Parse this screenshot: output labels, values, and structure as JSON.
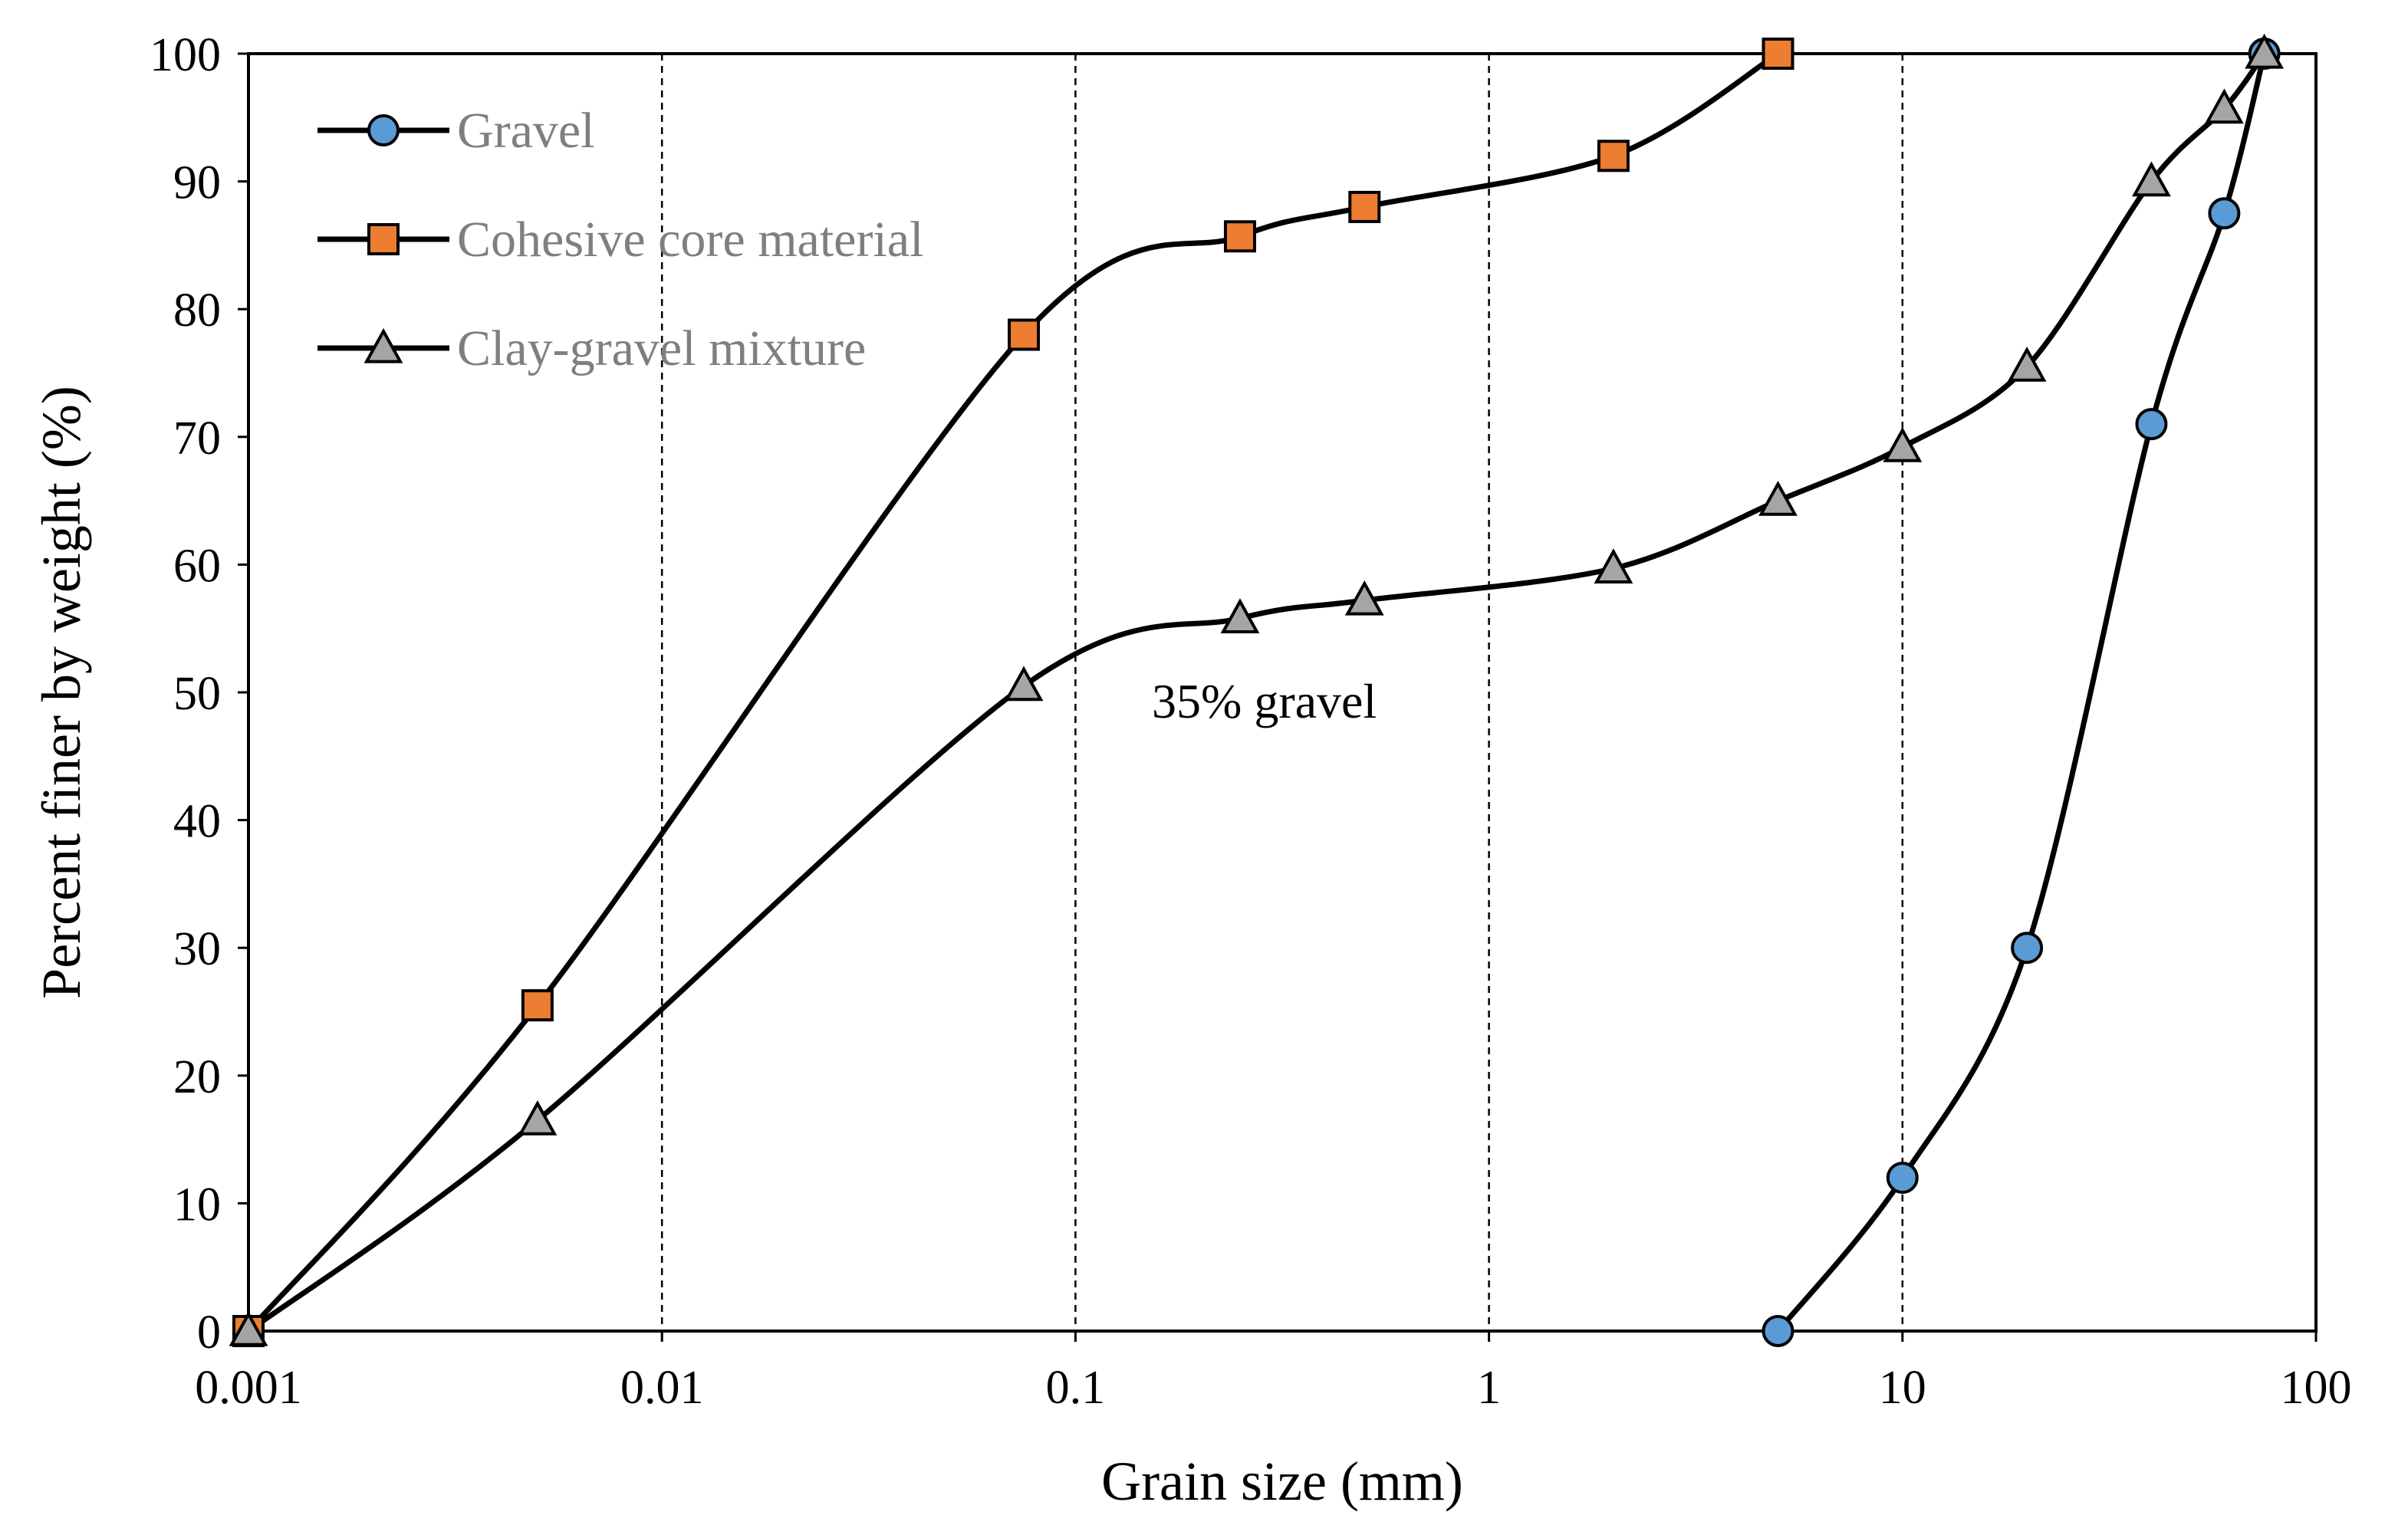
{
  "chart_data": {
    "type": "line",
    "title": "",
    "xlabel": "Grain size (mm)",
    "ylabel": "Percent finer by weight (%)",
    "xscale": "log",
    "xlim": [
      0.001,
      100
    ],
    "ylim": [
      0,
      100
    ],
    "x_ticks": [
      "0.001",
      "0.01",
      "0.1",
      "1",
      "10",
      "100"
    ],
    "y_ticks": [
      "0",
      "10",
      "20",
      "30",
      "40",
      "50",
      "60",
      "70",
      "80",
      "90",
      "100"
    ],
    "grid": "vertical dashed at decades",
    "legend_position": "top-left",
    "annotation": "35% gravel",
    "series": [
      {
        "name": "Gravel",
        "marker": "circle",
        "color": "#5b9bd5",
        "points": [
          [
            5,
            0
          ],
          [
            10,
            12
          ],
          [
            20,
            30
          ],
          [
            40,
            71
          ],
          [
            60,
            87.5
          ],
          [
            75,
            100
          ]
        ]
      },
      {
        "name": "Cohesive core material",
        "marker": "square",
        "color": "#ed7d31",
        "points": [
          [
            0.001,
            0
          ],
          [
            0.005,
            25.5
          ],
          [
            0.075,
            78
          ],
          [
            0.25,
            85.7
          ],
          [
            0.5,
            88
          ],
          [
            2,
            92
          ],
          [
            5,
            100
          ]
        ]
      },
      {
        "name": "Clay-gravel mixture",
        "marker": "triangle",
        "color": "#a5a5a5",
        "points": [
          [
            0.001,
            0
          ],
          [
            0.005,
            16.5
          ],
          [
            0.075,
            50.5
          ],
          [
            0.25,
            55.8
          ],
          [
            0.5,
            57.2
          ],
          [
            2,
            59.7
          ],
          [
            5,
            65
          ],
          [
            10,
            69.2
          ],
          [
            20,
            75.5
          ],
          [
            40,
            90
          ],
          [
            60,
            95.7
          ],
          [
            75,
            100
          ]
        ]
      }
    ]
  }
}
